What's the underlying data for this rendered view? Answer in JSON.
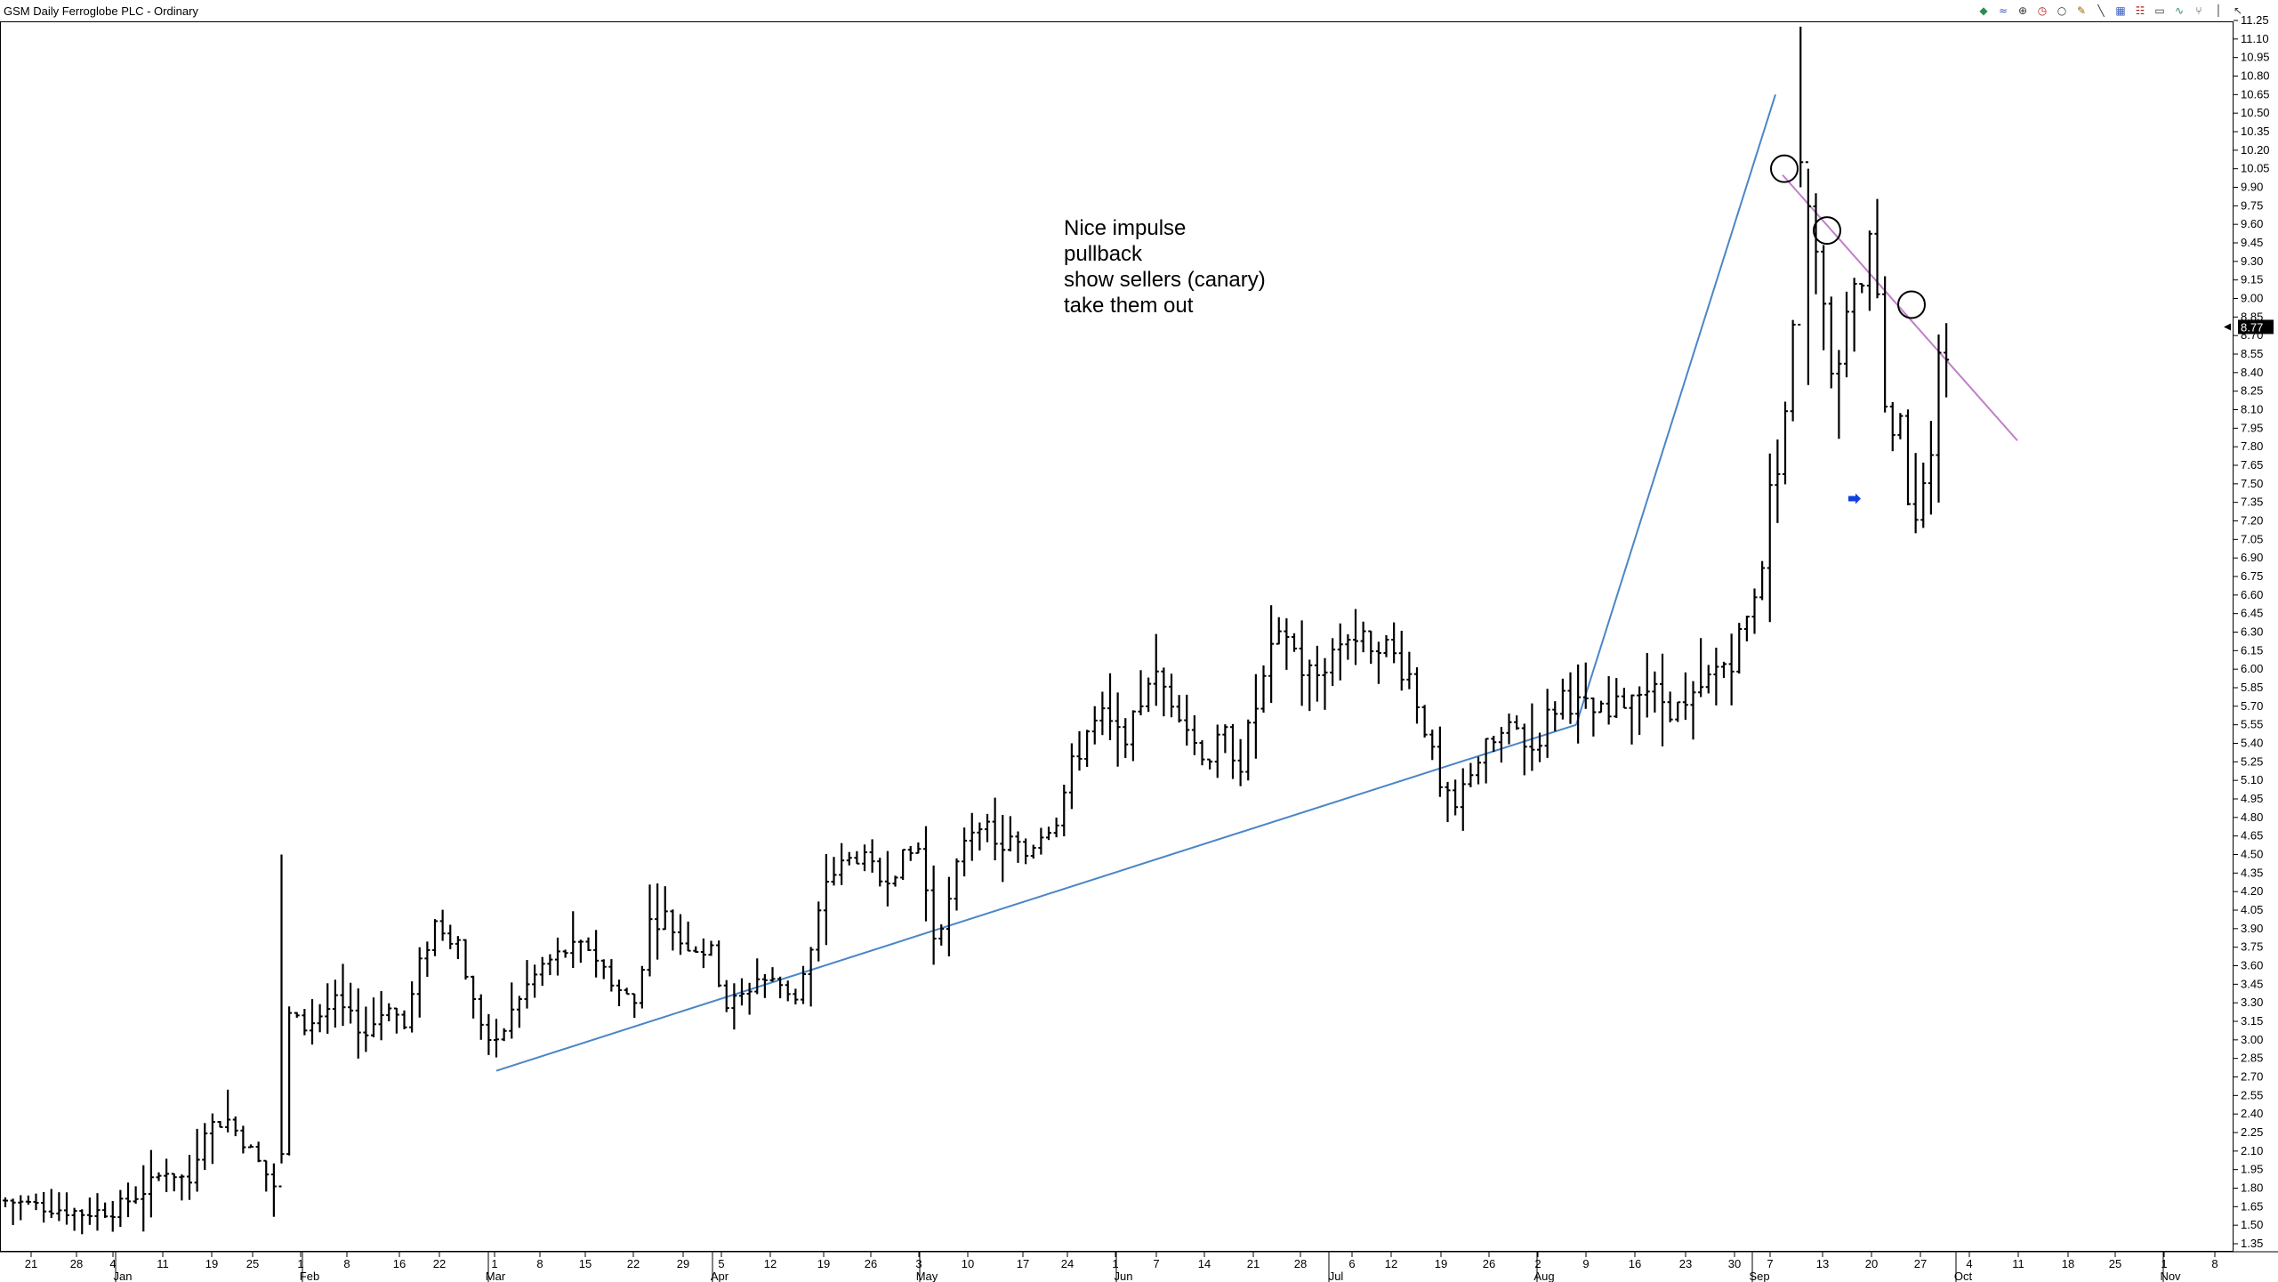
{
  "window": {
    "title": "GSM Daily Ferroglobe PLC - Ordinary"
  },
  "toolbar": {
    "icons": [
      {
        "name": "palette-icon",
        "glyph": "◆",
        "color": "#2e8b57"
      },
      {
        "name": "signal-icon",
        "glyph": "≈",
        "color": "#3a5ec0"
      },
      {
        "name": "crosshair-icon",
        "glyph": "⊕",
        "color": "#333333"
      },
      {
        "name": "clock-icon",
        "glyph": "◷",
        "color": "#b02020"
      },
      {
        "name": "circle-tool-icon",
        "glyph": "○",
        "color": "#333333"
      },
      {
        "name": "pencil-icon",
        "glyph": "✎",
        "color": "#a06000"
      },
      {
        "name": "line-tool-icon",
        "glyph": "╲",
        "color": "#333333"
      },
      {
        "name": "grid-icon",
        "glyph": "▦",
        "color": "#3a5ec0"
      },
      {
        "name": "text-tool-icon",
        "glyph": "☷",
        "color": "#b02020"
      },
      {
        "name": "rectangle-tool-icon",
        "glyph": "▭",
        "color": "#333333"
      },
      {
        "name": "wave-icon",
        "glyph": "∿",
        "color": "#2e8b57"
      },
      {
        "name": "fork-icon",
        "glyph": "⑂",
        "color": "#333333"
      },
      {
        "name": "vertical-line-icon",
        "glyph": "│",
        "color": "#333333"
      },
      {
        "name": "cursor-icon",
        "glyph": "↖",
        "color": "#333333"
      }
    ]
  },
  "note": {
    "lines": [
      "Nice impulse",
      "pullback",
      "show sellers (canary)",
      "take them out"
    ]
  },
  "price_tag": "8.77",
  "colors": {
    "bars": "#000000",
    "trendline_up": "#4a86c8",
    "trendline_down": "#c080c8",
    "marker_arrow": "#1040e0",
    "axis": "#000000"
  },
  "chart_data": {
    "type": "ohlc",
    "title": "GSM Daily Ferroglobe PLC - Ordinary",
    "xlabel": "",
    "ylabel": "",
    "ylim": [
      1.35,
      11.25
    ],
    "y_tick_step": 0.15,
    "grid": false,
    "x_axis": {
      "day_labels": [
        "21",
        "28",
        "4",
        "11",
        "19",
        "25",
        "1",
        "8",
        "16",
        "22",
        "1",
        "8",
        "15",
        "22",
        "29",
        "5",
        "12",
        "19",
        "26",
        "3",
        "10",
        "17",
        "24",
        "1",
        "7",
        "14",
        "21",
        "28",
        "6",
        "12",
        "19",
        "26",
        "2",
        "9",
        "16",
        "23",
        "30",
        "7",
        "13",
        "20",
        "27",
        "4",
        "11",
        "18",
        "25",
        "1",
        "8"
      ],
      "month_labels": [
        "Jan",
        "Feb",
        "Mar",
        "Apr",
        "May",
        "Jun",
        "Jul",
        "Aug",
        "Sep",
        "Oct",
        "Nov"
      ]
    },
    "keypoints": [
      {
        "i": 0,
        "v": 1.7
      },
      {
        "i": 5,
        "v": 1.65
      },
      {
        "i": 10,
        "v": 1.6
      },
      {
        "i": 14,
        "v": 1.62
      },
      {
        "i": 18,
        "v": 1.78
      },
      {
        "i": 21,
        "v": 1.95
      },
      {
        "i": 24,
        "v": 1.85
      },
      {
        "i": 26,
        "v": 2.3
      },
      {
        "i": 29,
        "v": 2.35
      },
      {
        "i": 32,
        "v": 2.1
      },
      {
        "i": 35,
        "v": 1.82
      },
      {
        "i": 36,
        "v": 2.05
      },
      {
        "i": 37,
        "v": 3.2
      },
      {
        "i": 39,
        "v": 3.1
      },
      {
        "i": 43,
        "v": 3.3
      },
      {
        "i": 47,
        "v": 3.05
      },
      {
        "i": 50,
        "v": 3.3
      },
      {
        "i": 52,
        "v": 3.1
      },
      {
        "i": 54,
        "v": 3.6
      },
      {
        "i": 56,
        "v": 3.95
      },
      {
        "i": 59,
        "v": 3.8
      },
      {
        "i": 61,
        "v": 3.3
      },
      {
        "i": 63,
        "v": 3.0
      },
      {
        "i": 64,
        "v": 2.95
      },
      {
        "i": 67,
        "v": 3.35
      },
      {
        "i": 70,
        "v": 3.6
      },
      {
        "i": 73,
        "v": 3.72
      },
      {
        "i": 76,
        "v": 3.75
      },
      {
        "i": 80,
        "v": 3.4
      },
      {
        "i": 82,
        "v": 3.3
      },
      {
        "i": 84,
        "v": 3.95
      },
      {
        "i": 86,
        "v": 4.0
      },
      {
        "i": 88,
        "v": 3.8
      },
      {
        "i": 92,
        "v": 3.7
      },
      {
        "i": 94,
        "v": 3.28
      },
      {
        "i": 96,
        "v": 3.35
      },
      {
        "i": 98,
        "v": 3.5
      },
      {
        "i": 101,
        "v": 3.45
      },
      {
        "i": 103,
        "v": 3.35
      },
      {
        "i": 105,
        "v": 3.7
      },
      {
        "i": 107,
        "v": 4.3
      },
      {
        "i": 109,
        "v": 4.4
      },
      {
        "i": 111,
        "v": 4.5
      },
      {
        "i": 114,
        "v": 4.3
      },
      {
        "i": 117,
        "v": 4.45
      },
      {
        "i": 119,
        "v": 4.55
      },
      {
        "i": 121,
        "v": 3.85
      },
      {
        "i": 123,
        "v": 4.1
      },
      {
        "i": 125,
        "v": 4.65
      },
      {
        "i": 127,
        "v": 4.8
      },
      {
        "i": 129,
        "v": 4.55
      },
      {
        "i": 131,
        "v": 4.6
      },
      {
        "i": 133,
        "v": 4.5
      },
      {
        "i": 135,
        "v": 4.7
      },
      {
        "i": 137,
        "v": 4.8
      },
      {
        "i": 139,
        "v": 5.2
      },
      {
        "i": 141,
        "v": 5.5
      },
      {
        "i": 143,
        "v": 5.6
      },
      {
        "i": 145,
        "v": 5.45
      },
      {
        "i": 147,
        "v": 5.55
      },
      {
        "i": 149,
        "v": 5.95
      },
      {
        "i": 151,
        "v": 5.85
      },
      {
        "i": 153,
        "v": 5.7
      },
      {
        "i": 155,
        "v": 5.4
      },
      {
        "i": 157,
        "v": 5.3
      },
      {
        "i": 159,
        "v": 5.45
      },
      {
        "i": 161,
        "v": 5.25
      },
      {
        "i": 163,
        "v": 5.7
      },
      {
        "i": 165,
        "v": 6.1
      },
      {
        "i": 167,
        "v": 6.3
      },
      {
        "i": 169,
        "v": 6.0
      },
      {
        "i": 171,
        "v": 5.95
      },
      {
        "i": 173,
        "v": 6.15
      },
      {
        "i": 175,
        "v": 6.3
      },
      {
        "i": 177,
        "v": 6.2
      },
      {
        "i": 179,
        "v": 6.25
      },
      {
        "i": 181,
        "v": 6.1
      },
      {
        "i": 183,
        "v": 5.95
      },
      {
        "i": 185,
        "v": 5.55
      },
      {
        "i": 187,
        "v": 5.0
      },
      {
        "i": 189,
        "v": 4.85
      },
      {
        "i": 191,
        "v": 5.2
      },
      {
        "i": 193,
        "v": 5.35
      },
      {
        "i": 195,
        "v": 5.45
      },
      {
        "i": 197,
        "v": 5.5
      },
      {
        "i": 199,
        "v": 5.35
      },
      {
        "i": 201,
        "v": 5.6
      },
      {
        "i": 203,
        "v": 5.8
      },
      {
        "i": 205,
        "v": 5.7
      },
      {
        "i": 207,
        "v": 5.65
      },
      {
        "i": 209,
        "v": 5.6
      },
      {
        "i": 211,
        "v": 5.75
      },
      {
        "i": 213,
        "v": 5.9
      },
      {
        "i": 215,
        "v": 5.8
      },
      {
        "i": 217,
        "v": 5.7
      },
      {
        "i": 219,
        "v": 5.65
      },
      {
        "i": 221,
        "v": 5.8
      },
      {
        "i": 223,
        "v": 6.0
      },
      {
        "i": 225,
        "v": 6.1
      },
      {
        "i": 227,
        "v": 6.4
      },
      {
        "i": 229,
        "v": 6.9
      },
      {
        "i": 230,
        "v": 7.4
      },
      {
        "i": 231,
        "v": 7.7
      },
      {
        "i": 232,
        "v": 8.1
      },
      {
        "i": 233,
        "v": 8.7
      },
      {
        "i": 234,
        "v": 10.2
      },
      {
        "i": 235,
        "v": 9.6
      },
      {
        "i": 236,
        "v": 9.3
      },
      {
        "i": 237,
        "v": 8.9
      },
      {
        "i": 238,
        "v": 8.3
      },
      {
        "i": 240,
        "v": 8.8
      },
      {
        "i": 242,
        "v": 9.2
      },
      {
        "i": 243,
        "v": 9.4
      },
      {
        "i": 244,
        "v": 9.0
      },
      {
        "i": 245,
        "v": 8.2
      },
      {
        "i": 247,
        "v": 7.9
      },
      {
        "i": 248,
        "v": 7.45
      },
      {
        "i": 249,
        "v": 7.3
      },
      {
        "i": 250,
        "v": 7.4
      },
      {
        "i": 251,
        "v": 7.6
      },
      {
        "i": 252,
        "v": 8.45
      },
      {
        "i": 253,
        "v": 8.6
      }
    ],
    "special_bars": [
      {
        "i": 36,
        "high": 4.5,
        "low": 2.0
      },
      {
        "i": 234,
        "high": 11.2,
        "low": 9.9
      },
      {
        "i": 235,
        "high": 10.05,
        "low": 8.3
      },
      {
        "i": 243,
        "high": 9.55,
        "low": 8.9
      },
      {
        "i": 249,
        "high": 7.75,
        "low": 7.1
      },
      {
        "i": 253,
        "high": 8.8,
        "low": 8.2
      }
    ],
    "annotations": {
      "text_lines": [
        "Nice impulse",
        "pullback",
        "show sellers (canary)",
        "take them out"
      ],
      "trendline_up": [
        [
          0.0,
          2.75
        ],
        [
          180.0,
          5.55
        ]
      ],
      "trendline_impulse": [
        [
          180.0,
          5.55
        ],
        [
          195.0,
          10.65
        ]
      ],
      "trendline_down": [
        [
          196.0,
          10.0
        ],
        [
          226.0,
          7.85
        ]
      ],
      "circles": [
        {
          "i": 196,
          "v": 10.05
        },
        {
          "i": 205,
          "v": 9.55
        },
        {
          "i": 214,
          "v": 8.95
        }
      ],
      "arrow_marker": {
        "i": 207,
        "v": 7.38
      },
      "last_price": 8.77
    }
  }
}
